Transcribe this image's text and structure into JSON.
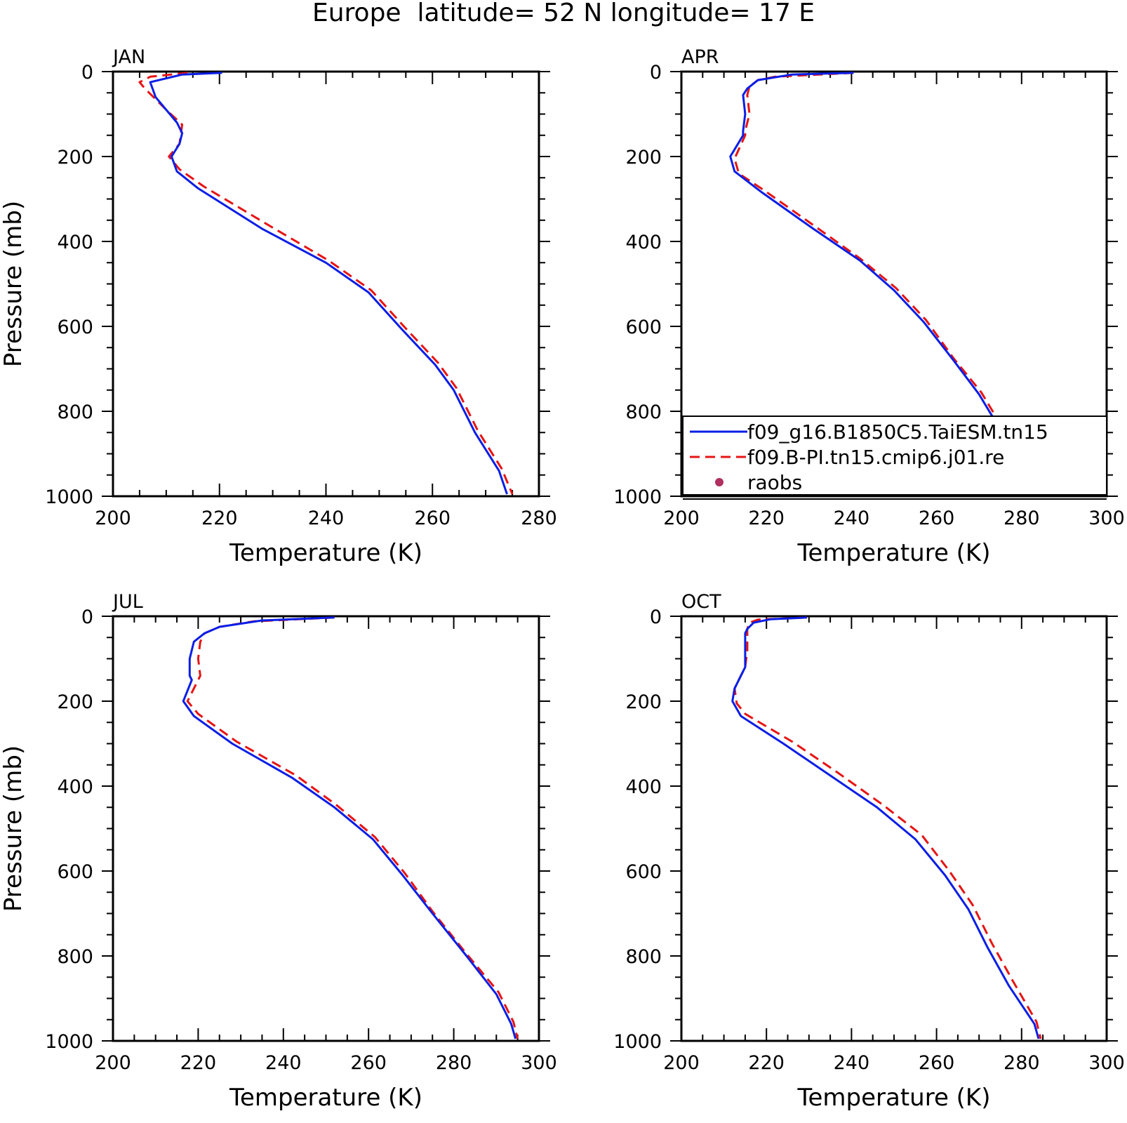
{
  "figure": {
    "title": "Europe  latitude= 52 N longitude= 17 E"
  },
  "colors": {
    "model": "#0a1ee6",
    "control": "#e61414",
    "raobs": "#b03060",
    "axes": "#000000"
  },
  "chart_data": [
    {
      "type": "line",
      "title": "JAN",
      "xlabel": "Temperature (K)",
      "ylabel": "Pressure (mb)",
      "xlim": [
        200,
        280
      ],
      "ylim": [
        1000,
        0
      ],
      "y_inverted": true,
      "xticks": [
        "200",
        "220",
        "240",
        "260",
        "280"
      ],
      "yticks": [
        "0",
        "200",
        "400",
        "600",
        "800",
        "1000"
      ],
      "series": [
        {
          "name": "f09_g16.B1850C5.TaiESM.tn15",
          "style": "solid",
          "x": [
            220.5,
            213,
            207,
            208,
            212,
            213,
            212.5,
            211,
            212,
            216,
            228,
            240,
            248,
            254.5,
            260.5,
            264,
            268,
            272.5,
            274
          ],
          "y": [
            3,
            7,
            25,
            60,
            120,
            145,
            170,
            200,
            235,
            275,
            370,
            450,
            520,
            610,
            690,
            750,
            850,
            940,
            995
          ]
        },
        {
          "name": "f09.B-PI.tn15.cmip6.j01.re",
          "style": "dashed",
          "x": [
            214,
            207,
            205,
            206,
            210,
            213,
            212.5,
            210.5,
            212.5,
            217,
            229,
            240.5,
            248.5,
            255,
            261,
            264.5,
            268.5,
            273,
            275
          ],
          "y": [
            3,
            12,
            25,
            40,
            90,
            125,
            170,
            200,
            230,
            270,
            360,
            445,
            515,
            605,
            685,
            745,
            845,
            935,
            995
          ]
        }
      ]
    },
    {
      "type": "line",
      "title": "APR",
      "xlabel": "Temperature (K)",
      "ylabel": "",
      "xlim": [
        200,
        300
      ],
      "ylim": [
        1000,
        0
      ],
      "y_inverted": true,
      "xticks": [
        "200",
        "220",
        "240",
        "260",
        "280",
        "300"
      ],
      "yticks": [
        "0",
        "200",
        "400",
        "600",
        "800",
        "1000"
      ],
      "legend": {
        "position": "bottom-right",
        "entries": [
          "f09_g16.B1850C5.TaiESM.tn15",
          "f09.B-PI.tn15.cmip6.j01.re",
          "raobs"
        ]
      },
      "series": [
        {
          "name": "f09_g16.B1850C5.TaiESM.tn15",
          "style": "solid",
          "x": [
            240.5,
            226,
            218,
            215.5,
            214.5,
            215,
            214.5,
            214.5,
            211.5,
            212.5,
            219,
            231,
            242,
            250,
            257,
            264,
            270,
            276,
            282,
            284
          ],
          "y": [
            3,
            7,
            20,
            40,
            55,
            100,
            140,
            150,
            200,
            235,
            285,
            370,
            445,
            515,
            590,
            680,
            760,
            860,
            955,
            995
          ]
        },
        {
          "name": "f09.B-PI.tn15.cmip6.j01.re",
          "style": "dashed",
          "x": [
            240.5,
            222,
            218,
            216,
            215.5,
            216,
            215,
            215,
            212.5,
            213.5,
            219.5,
            231.5,
            242,
            250.5,
            257.5,
            264,
            270.5,
            276.5,
            282,
            284
          ],
          "y": [
            3,
            12,
            20,
            35,
            55,
            100,
            140,
            150,
            205,
            240,
            280,
            365,
            440,
            510,
            585,
            675,
            755,
            855,
            950,
            995
          ]
        },
        {
          "name": "raobs",
          "style": "markers",
          "x": [],
          "y": []
        }
      ]
    },
    {
      "type": "line",
      "title": "JUL",
      "xlabel": "Temperature (K)",
      "ylabel": "Pressure (mb)",
      "xlim": [
        200,
        300
      ],
      "ylim": [
        1000,
        0
      ],
      "y_inverted": true,
      "xticks": [
        "200",
        "220",
        "240",
        "260",
        "280",
        "300"
      ],
      "yticks": [
        "0",
        "200",
        "400",
        "600",
        "800",
        "1000"
      ],
      "series": [
        {
          "name": "f09_g16.B1850C5.TaiESM.tn15",
          "style": "solid",
          "x": [
            252,
            235,
            225,
            221.5,
            219,
            218,
            218,
            218.5,
            216.5,
            219,
            228,
            242,
            252,
            261,
            268,
            275,
            283,
            290,
            293.5,
            294.5
          ],
          "y": [
            3,
            10,
            25,
            40,
            60,
            100,
            140,
            150,
            200,
            235,
            300,
            380,
            450,
            525,
            610,
            700,
            800,
            890,
            960,
            995
          ]
        },
        {
          "name": "f09.B-PI.tn15.cmip6.j01.re",
          "style": "dashed",
          "x": [
            252,
            233,
            225,
            221.5,
            220.5,
            220,
            220.5,
            220,
            217.5,
            220,
            229,
            243,
            252.5,
            261.5,
            268.5,
            275,
            283,
            290.5,
            294,
            295
          ],
          "y": [
            3,
            12,
            25,
            40,
            60,
            100,
            140,
            150,
            200,
            230,
            295,
            375,
            445,
            520,
            605,
            695,
            795,
            885,
            955,
            995
          ]
        }
      ]
    },
    {
      "type": "line",
      "title": "OCT",
      "xlabel": "Temperature (K)",
      "ylabel": "",
      "xlim": [
        200,
        300
      ],
      "ylim": [
        1000,
        0
      ],
      "y_inverted": true,
      "xticks": [
        "200",
        "220",
        "240",
        "260",
        "280",
        "300"
      ],
      "yticks": [
        "0",
        "200",
        "400",
        "600",
        "800",
        "1000"
      ],
      "series": [
        {
          "name": "f09_g16.B1850C5.TaiESM.tn15",
          "style": "solid",
          "x": [
            229.5,
            221,
            217,
            215.5,
            215,
            215,
            215,
            214,
            212.5,
            212,
            214,
            224,
            235,
            246,
            255,
            262,
            267.5,
            272,
            277,
            283,
            284
          ],
          "y": [
            3,
            7,
            15,
            30,
            40,
            80,
            120,
            140,
            170,
            200,
            235,
            300,
            375,
            450,
            525,
            610,
            690,
            780,
            870,
            960,
            995
          ]
        },
        {
          "name": "f09.B-PI.tn15.cmip6.j01.re",
          "style": "dashed",
          "x": [
            229.5,
            218,
            216,
            215.5,
            215.5,
            215.5,
            215,
            214,
            212.5,
            213,
            215,
            226,
            237,
            247.5,
            256.5,
            263,
            268.5,
            273,
            278,
            283.5,
            284.5
          ],
          "y": [
            3,
            8,
            15,
            30,
            40,
            80,
            120,
            140,
            170,
            205,
            230,
            295,
            370,
            445,
            515,
            600,
            680,
            770,
            860,
            955,
            995
          ]
        }
      ]
    }
  ]
}
